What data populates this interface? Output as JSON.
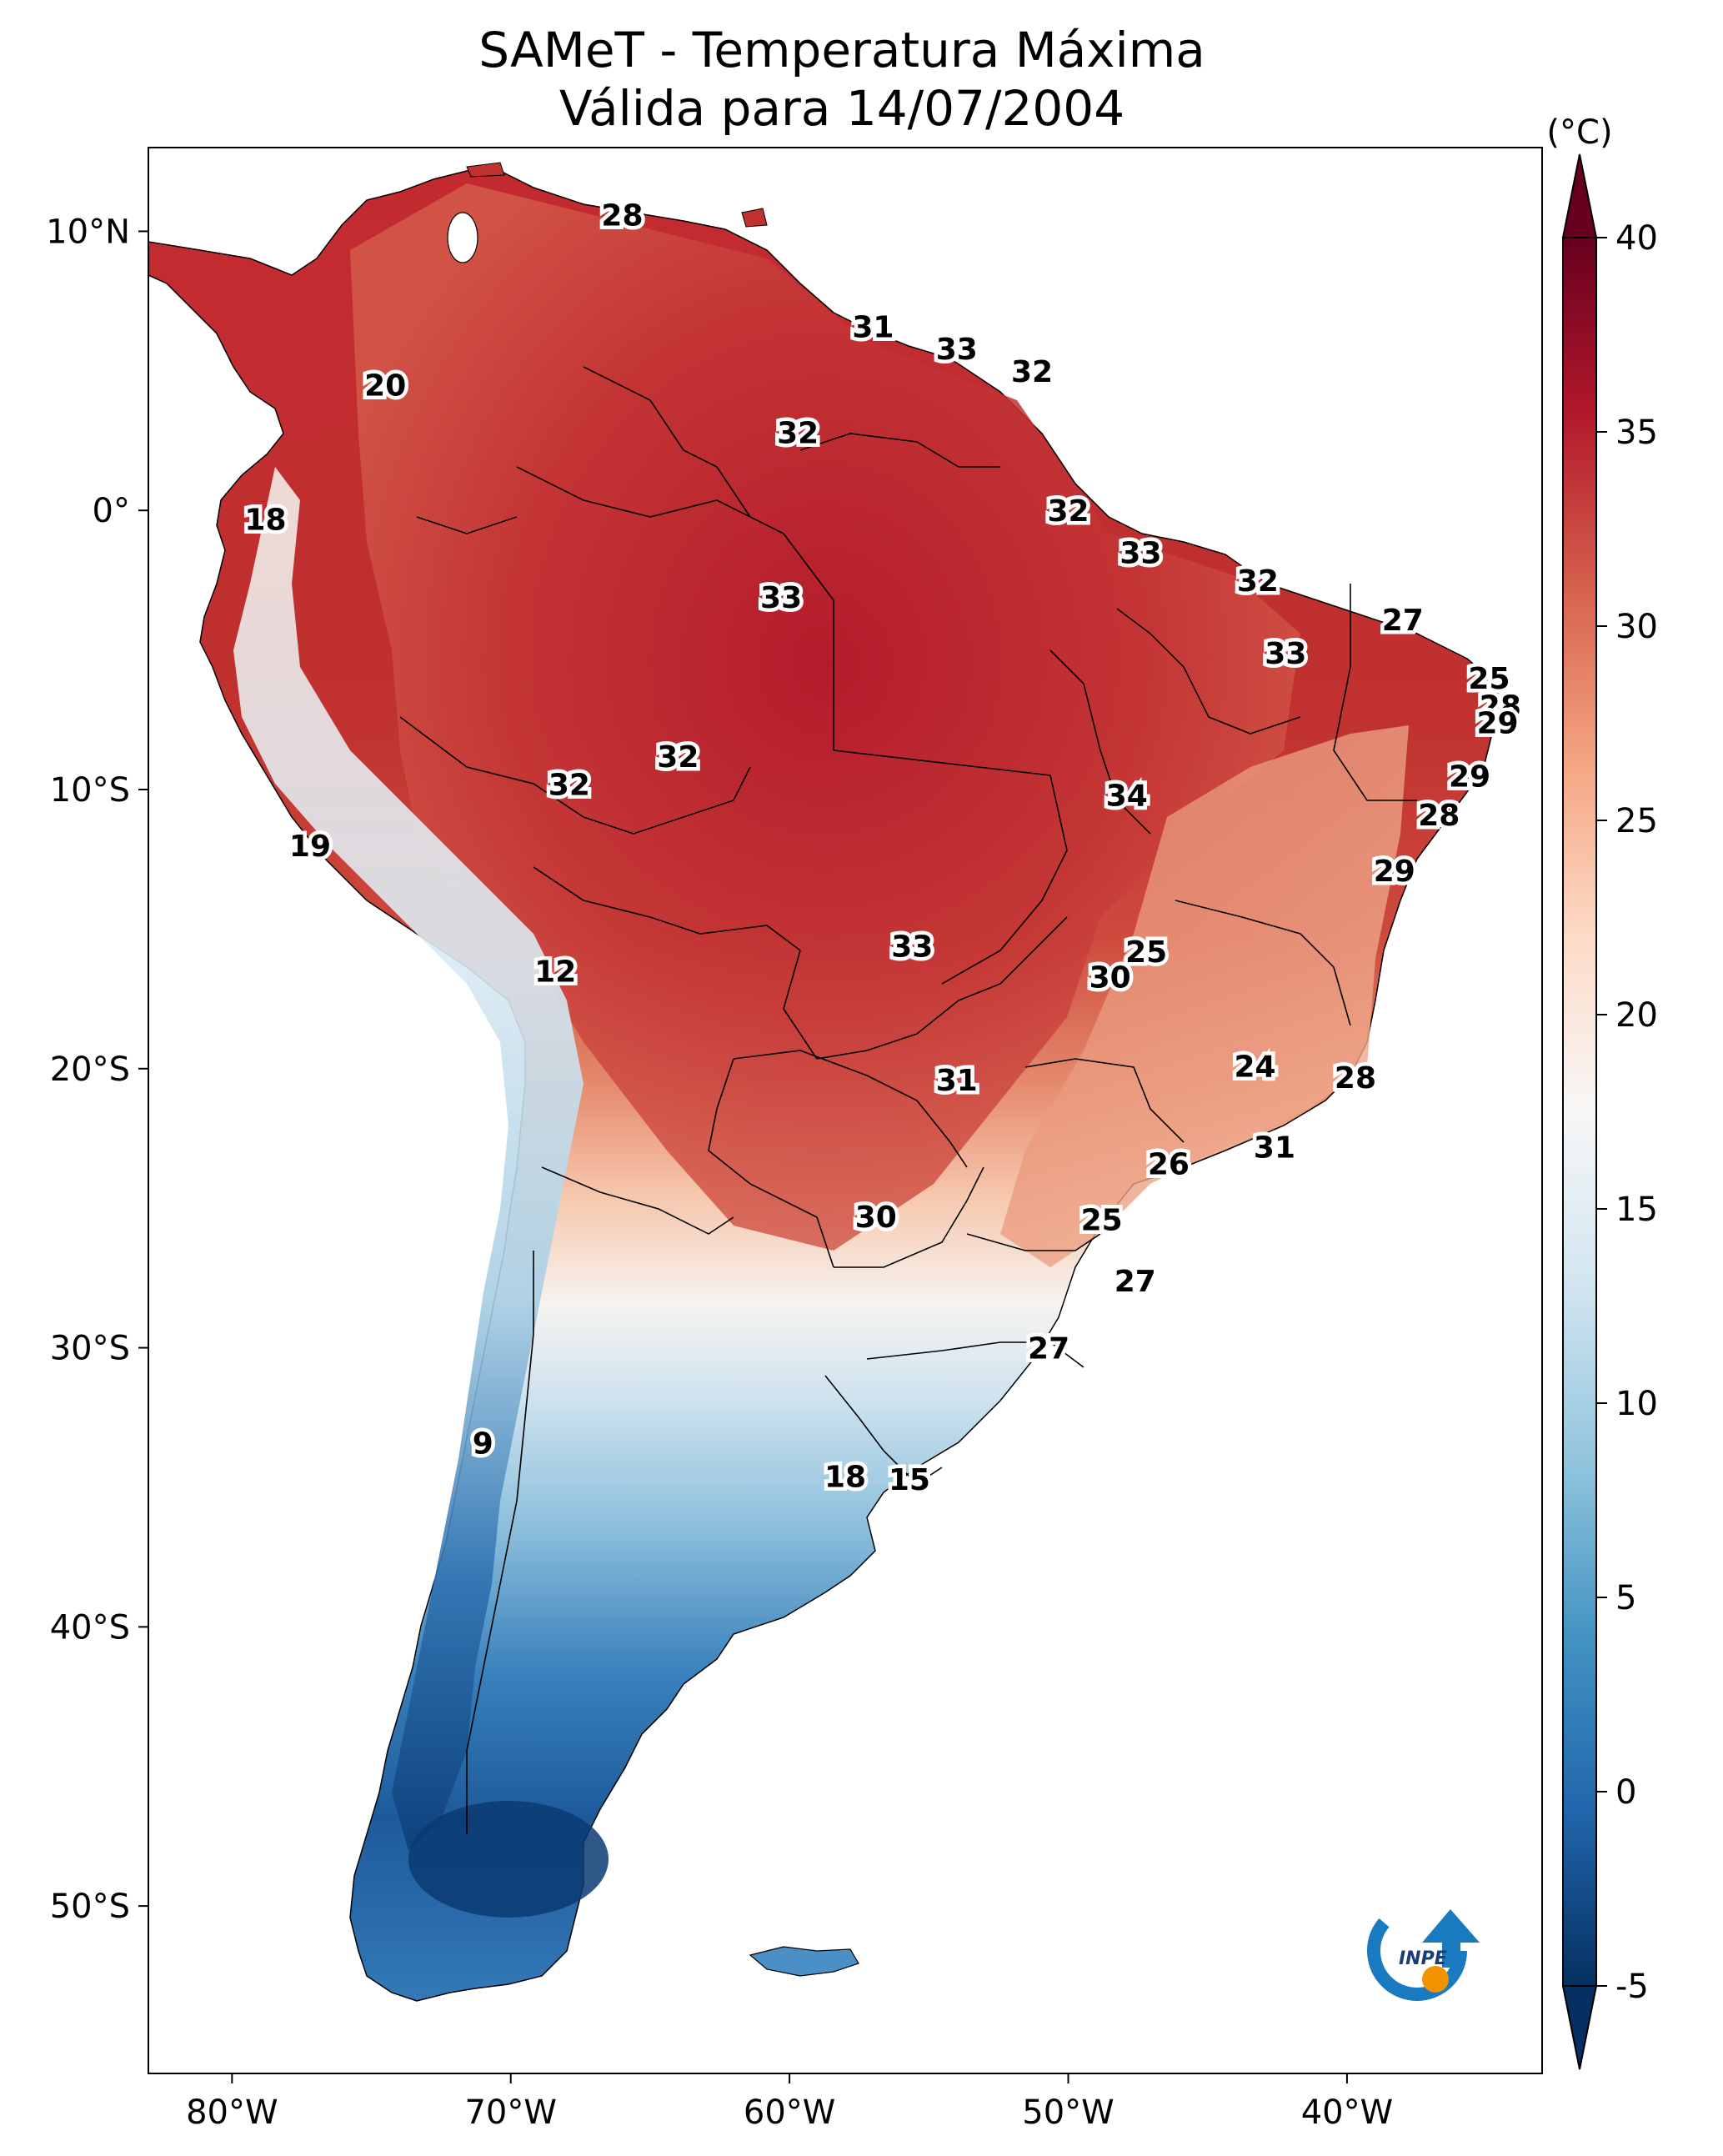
{
  "title": {
    "line1": "SAMeT - Temperatura Máxima",
    "line2": "Válida para 14/07/2004"
  },
  "map": {
    "lon_range": [
      -83,
      -33
    ],
    "lat_range": [
      -56,
      13
    ],
    "lat_ticks": [
      {
        "value": 10,
        "label": "10°N"
      },
      {
        "value": 0,
        "label": "0°"
      },
      {
        "value": -10,
        "label": "10°S"
      },
      {
        "value": -20,
        "label": "20°S"
      },
      {
        "value": -30,
        "label": "30°S"
      },
      {
        "value": -40,
        "label": "40°S"
      },
      {
        "value": -50,
        "label": "50°S"
      }
    ],
    "lon_ticks": [
      {
        "value": -80,
        "label": "80°W"
      },
      {
        "value": -70,
        "label": "70°W"
      },
      {
        "value": -60,
        "label": "60°W"
      },
      {
        "value": -50,
        "label": "50°W"
      },
      {
        "value": -40,
        "label": "40°W"
      }
    ]
  },
  "colorbar": {
    "unit": "(°C)",
    "min": -5,
    "max": 40,
    "ticks": [
      "-5",
      "0",
      "5",
      "10",
      "15",
      "20",
      "25",
      "30",
      "35",
      "40"
    ],
    "stops": [
      "#053061",
      "#2166ac",
      "#4393c3",
      "#92c5de",
      "#d1e5f0",
      "#f7f7f7",
      "#fddbc7",
      "#f4a582",
      "#d6604d",
      "#b2182b",
      "#67001f"
    ]
  },
  "station_labels": [
    {
      "value": "28",
      "lon": -66.0,
      "lat": 10.6
    },
    {
      "value": "20",
      "lon": -74.5,
      "lat": 4.5
    },
    {
      "value": "31",
      "lon": -57.0,
      "lat": 6.6
    },
    {
      "value": "33",
      "lon": -54.0,
      "lat": 5.8
    },
    {
      "value": "32",
      "lon": -51.3,
      "lat": 5.0
    },
    {
      "value": "32",
      "lon": -59.7,
      "lat": 2.8
    },
    {
      "value": "18",
      "lon": -78.8,
      "lat": -0.3
    },
    {
      "value": "32",
      "lon": -50.0,
      "lat": 0.0
    },
    {
      "value": "33",
      "lon": -47.4,
      "lat": -1.5
    },
    {
      "value": "32",
      "lon": -43.2,
      "lat": -2.5
    },
    {
      "value": "33",
      "lon": -60.3,
      "lat": -3.1
    },
    {
      "value": "27",
      "lon": -38.0,
      "lat": -3.9
    },
    {
      "value": "33",
      "lon": -42.2,
      "lat": -5.1
    },
    {
      "value": "25",
      "lon": -34.9,
      "lat": -6.0
    },
    {
      "value": "28",
      "lon": -34.5,
      "lat": -7.0
    },
    {
      "value": "29",
      "lon": -34.6,
      "lat": -7.6
    },
    {
      "value": "32",
      "lon": -64.0,
      "lat": -8.8
    },
    {
      "value": "32",
      "lon": -67.9,
      "lat": -9.8
    },
    {
      "value": "29",
      "lon": -35.6,
      "lat": -9.5
    },
    {
      "value": "34",
      "lon": -47.9,
      "lat": -10.2
    },
    {
      "value": "28",
      "lon": -36.7,
      "lat": -10.9
    },
    {
      "value": "19",
      "lon": -77.2,
      "lat": -12.0
    },
    {
      "value": "29",
      "lon": -38.3,
      "lat": -12.9
    },
    {
      "value": "12",
      "lon": -68.4,
      "lat": -16.5
    },
    {
      "value": "33",
      "lon": -55.6,
      "lat": -15.6
    },
    {
      "value": "25",
      "lon": -47.2,
      "lat": -15.8
    },
    {
      "value": "30",
      "lon": -48.5,
      "lat": -16.7
    },
    {
      "value": "24",
      "lon": -43.3,
      "lat": -19.9
    },
    {
      "value": "31",
      "lon": -54.0,
      "lat": -20.4
    },
    {
      "value": "28",
      "lon": -39.7,
      "lat": -20.3
    },
    {
      "value": "31",
      "lon": -42.6,
      "lat": -22.8
    },
    {
      "value": "26",
      "lon": -46.4,
      "lat": -23.4
    },
    {
      "value": "30",
      "lon": -56.9,
      "lat": -25.3
    },
    {
      "value": "25",
      "lon": -48.8,
      "lat": -25.4
    },
    {
      "value": "27",
      "lon": -47.6,
      "lat": -27.6
    },
    {
      "value": "27",
      "lon": -50.7,
      "lat": -30.0
    },
    {
      "value": "9",
      "lon": -71.0,
      "lat": -33.4
    },
    {
      "value": "18",
      "lon": -58.0,
      "lat": -34.6
    },
    {
      "value": "15",
      "lon": -55.7,
      "lat": -34.7
    }
  ]
}
